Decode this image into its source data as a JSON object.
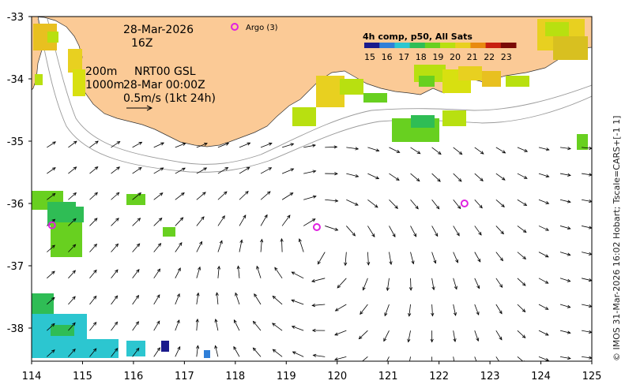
{
  "map": {
    "date": "28-Mar-2026",
    "time": "16Z",
    "contour_shallow": "200m",
    "contour_deep": "1000m",
    "current_source": "NRT00 GSL",
    "current_time": "28-Mar 00:00Z",
    "vector_scale": "0.5m/s (1kt 24h)",
    "argo_label": "Argo (3)",
    "sst_title": "4h comp, p50, All Sats",
    "sst_ticks": [
      "15",
      "16",
      "17",
      "18",
      "19",
      "20",
      "21",
      "22",
      "23"
    ],
    "credit": "© IMOS 31-Mar-2026 16:02 Hobart; Tscale=CARS+[-1 1]",
    "lon_ticks": [
      "114",
      "115",
      "116",
      "117",
      "118",
      "119",
      "120",
      "121",
      "122",
      "123",
      "124",
      "125"
    ],
    "lat_ticks": [
      "-33",
      "-34",
      "-35",
      "-36",
      "-37",
      "-38"
    ],
    "argo_floats": [
      {
        "lon": 114.4,
        "lat": -36.35
      },
      {
        "lon": 119.6,
        "lat": -36.38
      },
      {
        "lon": 122.5,
        "lat": -36.0
      }
    ],
    "colors": {
      "land": "#fbca96",
      "argo": "#e020e0",
      "ocean": "#ffffff",
      "contour": "#9a9a9a",
      "sst_scale": [
        "#1a1a8c",
        "#2f7fd8",
        "#2cc6d0",
        "#2fbd55",
        "#68d020",
        "#b8e010",
        "#e8d020",
        "#e88a10",
        "#c82010",
        "#7a0a05"
      ]
    }
  }
}
